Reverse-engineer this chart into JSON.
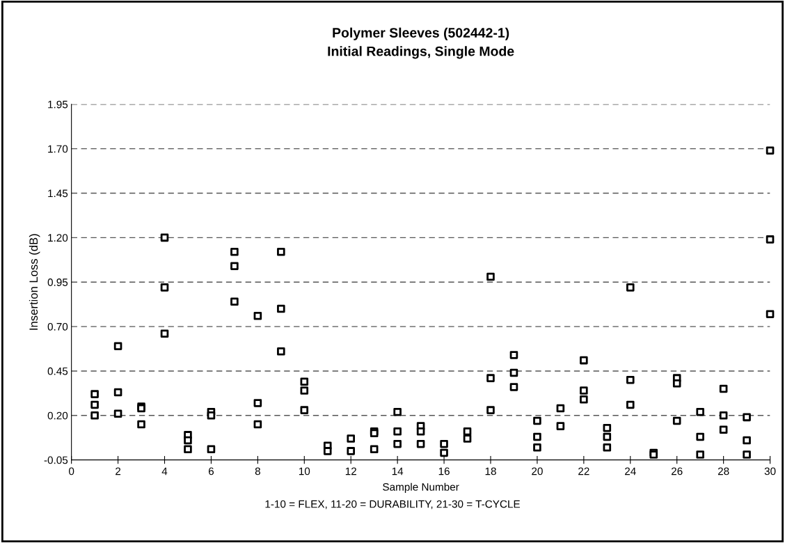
{
  "chart_data": {
    "type": "scatter",
    "title": "Polymer Sleeves (502442-1)\nInitial Readings, Single Mode",
    "xlabel": "Sample Number",
    "ylabel": "Insertion Loss (dB)",
    "annotations": [
      "1-10 = FLEX, 11-20 = DURABILITY, 21-30 = T-CYCLE"
    ],
    "series": [
      {
        "color": "#000000",
        "x": [
          1,
          1,
          1,
          2,
          2,
          2,
          3,
          3,
          3,
          4,
          4,
          4,
          5,
          5,
          5,
          6,
          6,
          6,
          7,
          7,
          7,
          8,
          8,
          8,
          9,
          9,
          9,
          10,
          10,
          10,
          11,
          11,
          12,
          12,
          13,
          13,
          13,
          14,
          14,
          14,
          15,
          15,
          15,
          16,
          16,
          17,
          17,
          18,
          18,
          18,
          19,
          19,
          19,
          20,
          20,
          20,
          21,
          21,
          22,
          22,
          22,
          23,
          23,
          23,
          24,
          24,
          24,
          25,
          25,
          26,
          26,
          26,
          27,
          27,
          27,
          28,
          28,
          28,
          29,
          29,
          29,
          30,
          30,
          30
        ],
        "values": [
          0.32,
          0.26,
          0.2,
          0.59,
          0.33,
          0.21,
          0.25,
          0.24,
          0.15,
          1.2,
          0.92,
          0.66,
          0.09,
          0.06,
          0.01,
          0.22,
          0.2,
          0.01,
          1.12,
          1.04,
          0.84,
          0.76,
          0.27,
          0.15,
          1.12,
          0.8,
          0.56,
          0.39,
          0.34,
          0.23,
          0.03,
          0.0,
          0.07,
          0.0,
          0.11,
          0.1,
          0.01,
          0.22,
          0.11,
          0.04,
          0.14,
          0.11,
          0.04,
          0.04,
          -0.01,
          0.11,
          0.07,
          0.98,
          0.41,
          0.23,
          0.54,
          0.44,
          0.36,
          0.17,
          0.08,
          0.02,
          0.24,
          0.14,
          0.51,
          0.34,
          0.29,
          0.13,
          0.08,
          0.02,
          0.92,
          0.4,
          0.26,
          -0.01,
          -0.02,
          0.41,
          0.38,
          0.17,
          0.22,
          0.08,
          -0.02,
          0.35,
          0.2,
          0.12,
          0.19,
          0.06,
          -0.02,
          1.69,
          1.19,
          0.77
        ]
      }
    ],
    "xlim": [
      0,
      30
    ],
    "xticks": [
      0,
      2,
      4,
      6,
      8,
      10,
      12,
      14,
      16,
      18,
      20,
      22,
      24,
      26,
      28,
      30
    ],
    "ylim": [
      -0.05,
      1.95
    ],
    "yticks": [
      {
        "value": -0.05,
        "label": "-0.05"
      },
      {
        "value": 0.2,
        "label": "0.20"
      },
      {
        "value": 0.45,
        "label": "0.45"
      },
      {
        "value": 0.7,
        "label": "0.70"
      },
      {
        "value": 0.95,
        "label": "0.95"
      },
      {
        "value": 1.2,
        "label": "1.20"
      },
      {
        "value": 1.45,
        "label": "1.45"
      },
      {
        "value": 1.7,
        "label": "1.70"
      },
      {
        "value": 1.95,
        "label": "1.95"
      }
    ],
    "grid": "y",
    "marker": "square",
    "legend": false
  }
}
